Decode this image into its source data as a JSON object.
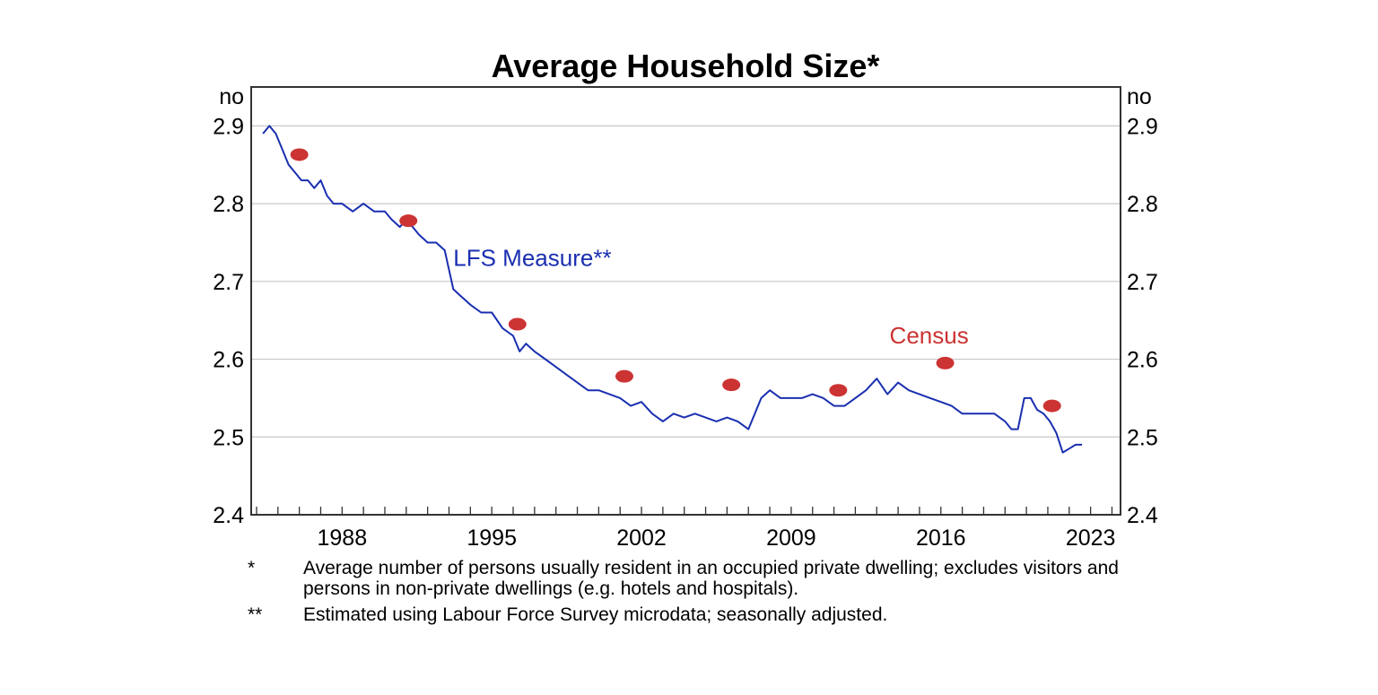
{
  "chart_data": {
    "type": "line",
    "title": "Average Household Size*",
    "unit_left": "no",
    "unit_right": "no",
    "ylim": [
      2.4,
      2.95
    ],
    "yticks": [
      2.4,
      2.5,
      2.6,
      2.7,
      2.8,
      2.9
    ],
    "ytick_labels": [
      "2.4",
      "2.5",
      "2.6",
      "2.7",
      "2.8",
      "2.9"
    ],
    "xlim": [
      1983.75,
      2024.4
    ],
    "xticks": [
      1988,
      1995,
      2002,
      2009,
      2016,
      2023
    ],
    "xtick_labels": [
      "1988",
      "1995",
      "2002",
      "2009",
      "2016",
      "2023"
    ],
    "grid": true,
    "series": [
      {
        "name": "LFS Measure**",
        "color": "#1a2fb0",
        "style": "line",
        "x": [
          1984.3,
          1984.6,
          1984.9,
          1985.2,
          1985.5,
          1985.8,
          1986.1,
          1986.4,
          1986.7,
          1987.0,
          1987.3,
          1987.6,
          1988.0,
          1988.5,
          1989.0,
          1989.5,
          1990.0,
          1990.3,
          1990.7,
          1991.0,
          1991.3,
          1991.6,
          1992.0,
          1992.4,
          1992.8,
          1993.2,
          1993.6,
          1994.0,
          1994.5,
          1995.0,
          1995.5,
          1996.0,
          1996.3,
          1996.6,
          1997.0,
          1997.5,
          1998.0,
          1998.5,
          1999.0,
          1999.5,
          2000.0,
          2000.5,
          2001.0,
          2001.5,
          2002.0,
          2002.5,
          2003.0,
          2003.5,
          2004.0,
          2004.5,
          2005.0,
          2005.5,
          2006.0,
          2006.5,
          2007.0,
          2007.3,
          2007.6,
          2008.0,
          2008.5,
          2009.0,
          2009.5,
          2010.0,
          2010.5,
          2011.0,
          2011.5,
          2012.0,
          2012.5,
          2013.0,
          2013.5,
          2014.0,
          2014.5,
          2015.0,
          2015.5,
          2016.0,
          2016.5,
          2017.0,
          2017.5,
          2018.0,
          2018.5,
          2019.0,
          2019.3,
          2019.6,
          2019.9,
          2020.2,
          2020.5,
          2020.8,
          2021.1,
          2021.4,
          2021.7,
          2022.0,
          2022.3,
          2022.6
        ],
        "values": [
          2.89,
          2.9,
          2.89,
          2.87,
          2.85,
          2.84,
          2.83,
          2.83,
          2.82,
          2.83,
          2.81,
          2.8,
          2.8,
          2.79,
          2.8,
          2.79,
          2.79,
          2.78,
          2.77,
          2.78,
          2.77,
          2.76,
          2.75,
          2.75,
          2.74,
          2.69,
          2.68,
          2.67,
          2.66,
          2.66,
          2.64,
          2.63,
          2.61,
          2.62,
          2.61,
          2.6,
          2.59,
          2.58,
          2.57,
          2.56,
          2.56,
          2.555,
          2.55,
          2.54,
          2.545,
          2.53,
          2.52,
          2.53,
          2.525,
          2.53,
          2.525,
          2.52,
          2.525,
          2.52,
          2.51,
          2.53,
          2.55,
          2.56,
          2.55,
          2.55,
          2.55,
          2.555,
          2.55,
          2.54,
          2.54,
          2.55,
          2.56,
          2.575,
          2.555,
          2.57,
          2.56,
          2.555,
          2.55,
          2.545,
          2.54,
          2.53,
          2.53,
          2.53,
          2.53,
          2.52,
          2.51,
          2.51,
          2.55,
          2.55,
          2.535,
          2.53,
          2.52,
          2.505,
          2.48,
          2.485,
          2.49,
          2.49
        ]
      },
      {
        "name": "Census",
        "color": "#cc3333",
        "style": "points",
        "x": [
          1986.0,
          1991.1,
          1996.2,
          2001.2,
          2006.2,
          2011.2,
          2016.2,
          2021.2
        ],
        "values": [
          2.863,
          2.778,
          2.645,
          2.578,
          2.567,
          2.56,
          2.595,
          2.54
        ]
      }
    ],
    "annotations": [
      {
        "text": "LFS Measure**",
        "color": "#1a2fb0",
        "x": 1993.2,
        "y": 2.72
      },
      {
        "text": "Census",
        "color": "#cc3333",
        "x": 2013.6,
        "y": 2.62
      }
    ]
  },
  "notes": [
    {
      "mark": "*",
      "text": "Average number of persons usually resident in an occupied private dwelling; excludes visitors and persons in non-private dwellings (e.g. hotels and hospitals)."
    },
    {
      "mark": "**",
      "text": "Estimated using Labour Force Survey microdata; seasonally adjusted."
    }
  ]
}
